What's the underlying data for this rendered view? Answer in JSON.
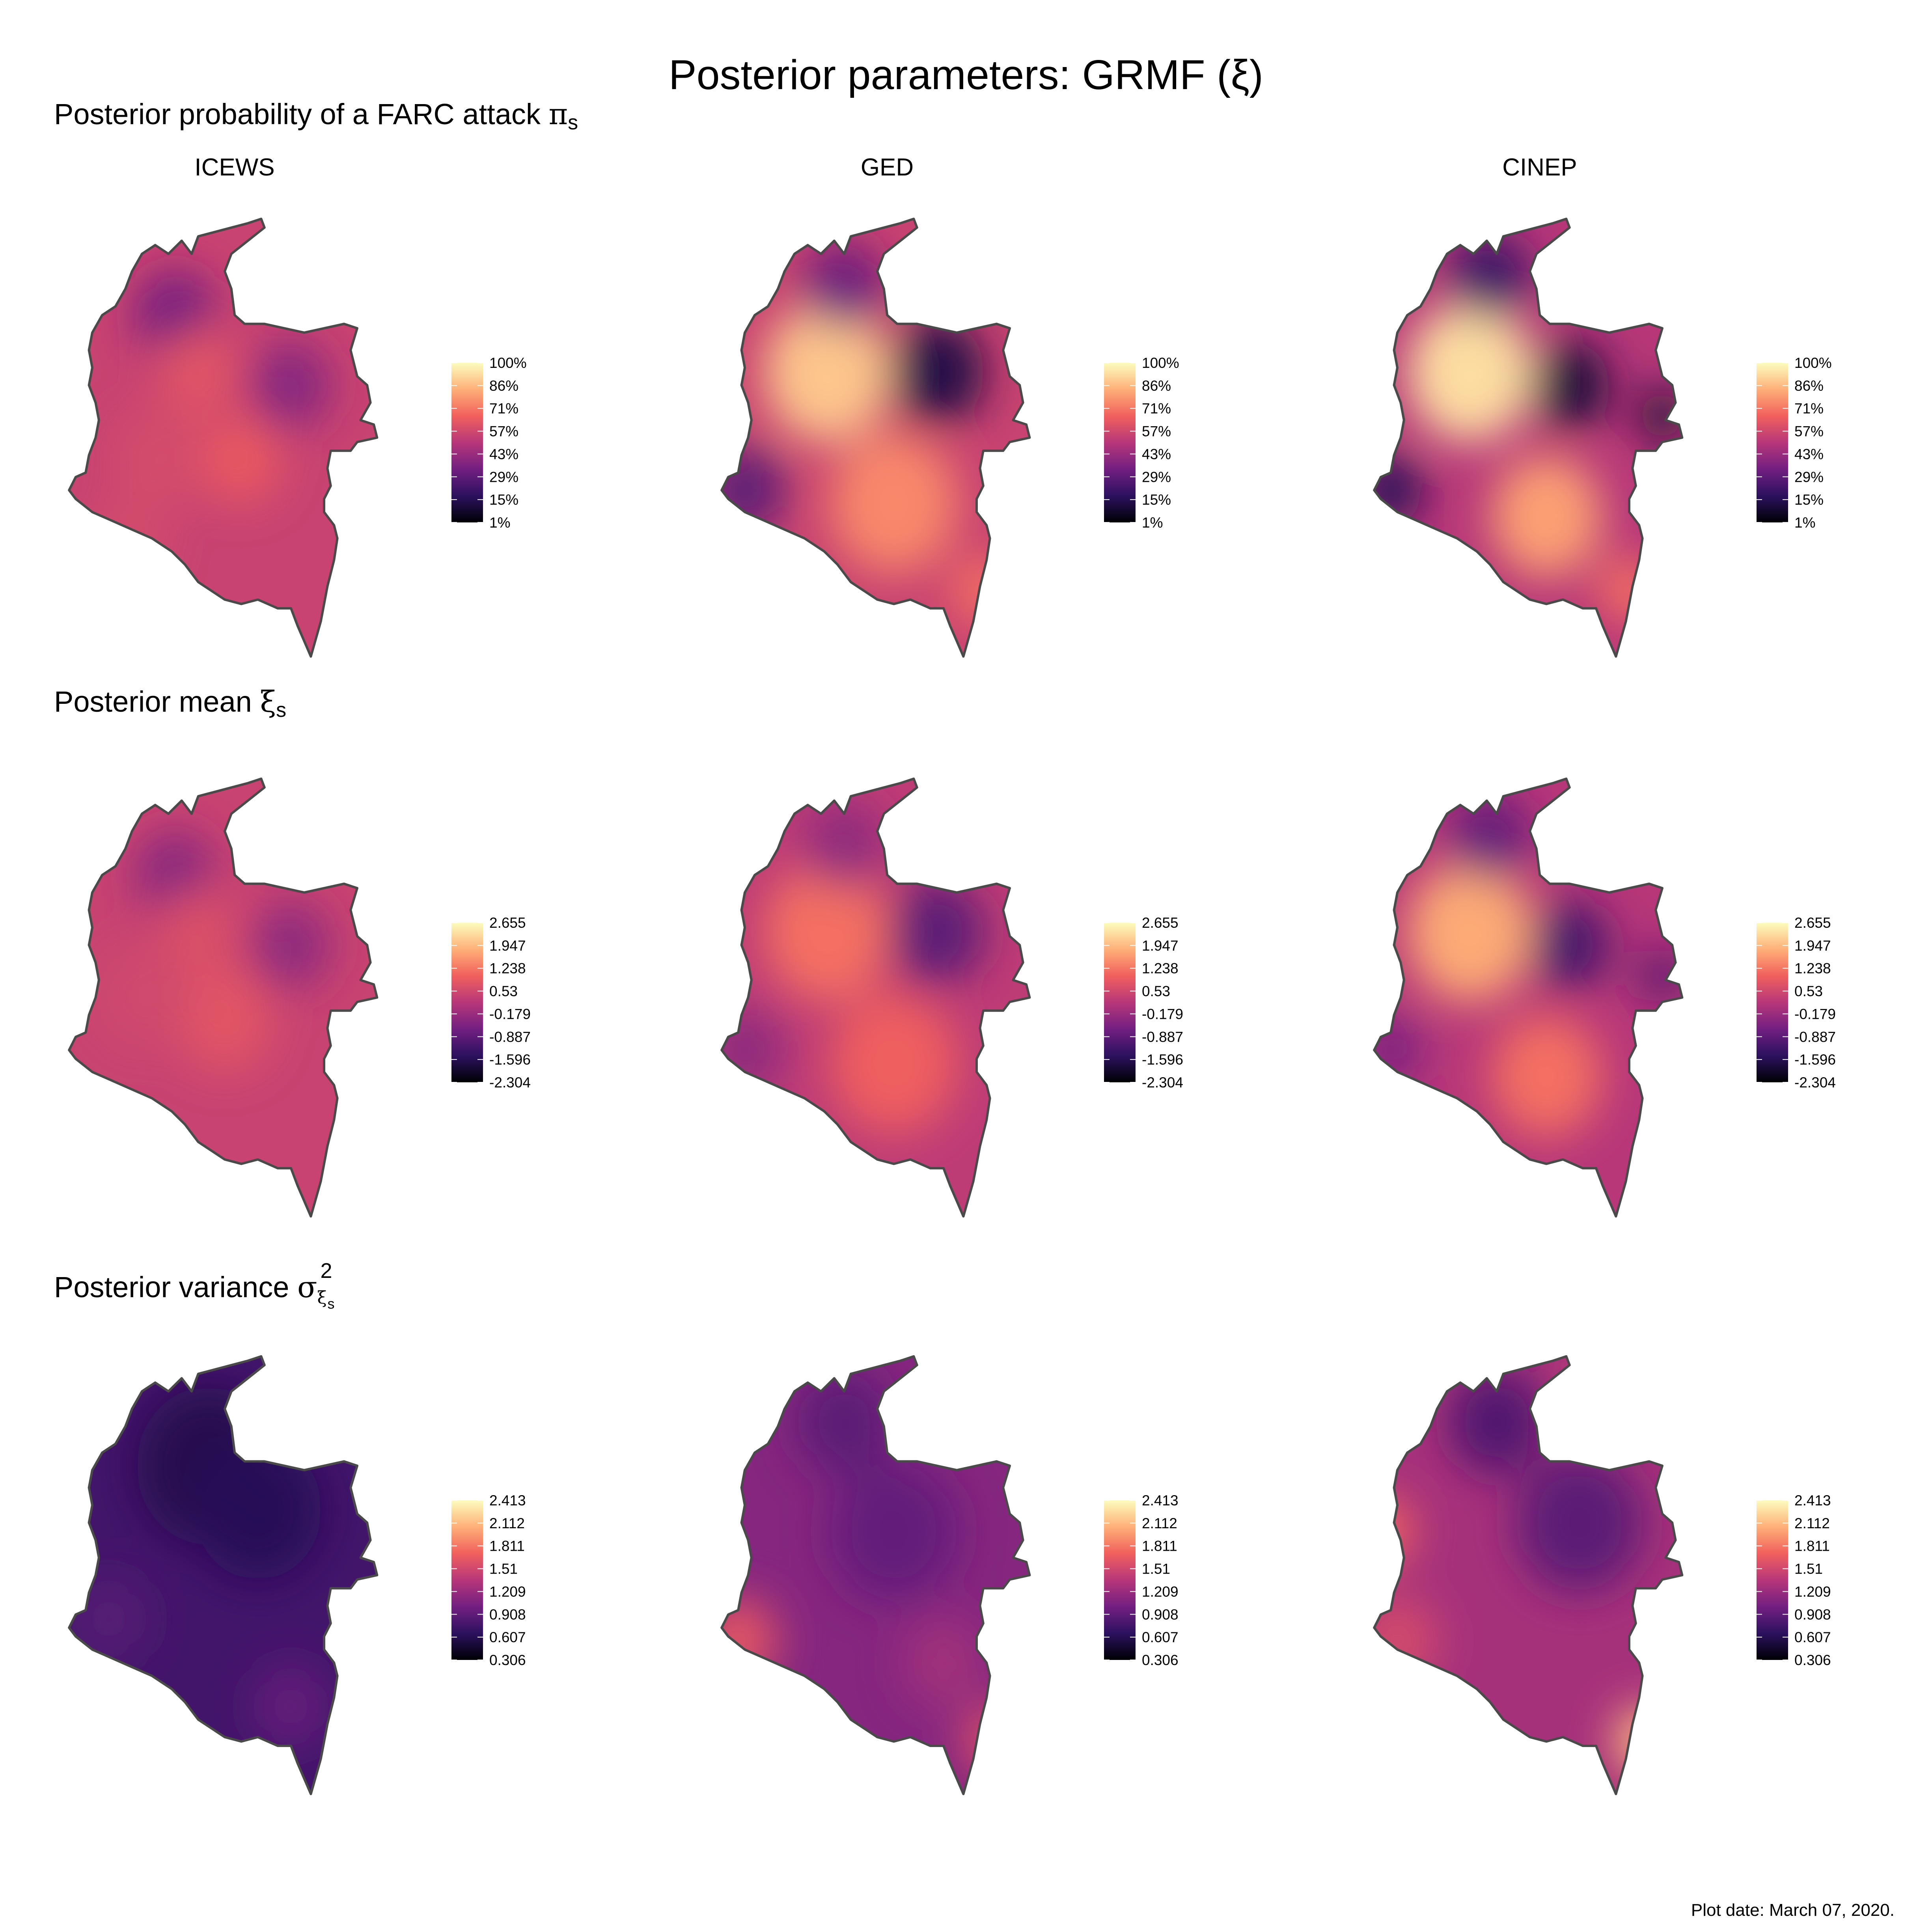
{
  "figure": {
    "title": "Posterior parameters: GRMF (ξ)",
    "footer": "Plot date: March 07, 2020."
  },
  "columns": [
    "ICEWS",
    "GED",
    "CINEP"
  ],
  "rows": [
    {
      "key": "pi",
      "title_text": "Posterior probability of a FARC attack ",
      "title_symbol": "π",
      "title_subscript": "s",
      "legend_ticks": [
        "100%",
        "86%",
        "71%",
        "57%",
        "43%",
        "29%",
        "15%",
        "1%"
      ]
    },
    {
      "key": "mean",
      "title_text": "Posterior mean ",
      "title_symbol": "ξ",
      "title_subscript": "s",
      "legend_ticks": [
        "2.655",
        "1.947",
        "1.238",
        "0.53",
        "-0.179",
        "-0.887",
        "-1.596",
        "-2.304"
      ]
    },
    {
      "key": "variance",
      "title_text": "Posterior variance ",
      "title_symbol": "σ",
      "title_superscript": "2",
      "title_sub_symbol": "ξ",
      "title_sub_subscript": "s",
      "legend_ticks": [
        "2.413",
        "2.112",
        "1.811",
        "1.51",
        "1.209",
        "0.908",
        "0.607",
        "0.306"
      ]
    }
  ],
  "colors": {
    "palette": [
      "#000004",
      "#2c115f",
      "#721f81",
      "#b73779",
      "#f1605d",
      "#feb078",
      "#fcfdbf"
    ],
    "border": "#4a4a4a",
    "background": "#ffffff"
  },
  "map_data": {
    "region": "Colombia",
    "panels": [
      {
        "row": "pi",
        "column": "ICEWS",
        "base": 0.55,
        "blobs": [
          [
            0.35,
            0.22,
            0.33,
            0.1
          ],
          [
            0.7,
            0.38,
            0.38,
            0.1
          ],
          [
            0.42,
            0.35,
            0.62,
            0.1
          ],
          [
            0.55,
            0.55,
            0.64,
            0.1
          ],
          [
            0.3,
            0.55,
            0.58,
            0.12
          ],
          [
            0.2,
            0.75,
            0.58,
            0.1
          ]
        ]
      },
      {
        "row": "pi",
        "column": "GED",
        "base": 0.55,
        "blobs": [
          [
            0.35,
            0.35,
            0.88,
            0.16
          ],
          [
            0.55,
            0.65,
            0.75,
            0.16
          ],
          [
            0.68,
            0.35,
            0.12,
            0.12
          ],
          [
            0.1,
            0.62,
            0.28,
            0.1
          ],
          [
            0.4,
            0.15,
            0.32,
            0.1
          ],
          [
            0.82,
            0.85,
            0.7,
            0.08
          ]
        ]
      },
      {
        "row": "pi",
        "column": "CINEP",
        "base": 0.5,
        "blobs": [
          [
            0.32,
            0.35,
            0.93,
            0.16
          ],
          [
            0.55,
            0.68,
            0.8,
            0.14
          ],
          [
            0.62,
            0.38,
            0.1,
            0.1
          ],
          [
            0.9,
            0.45,
            0.08,
            0.06
          ],
          [
            0.08,
            0.62,
            0.15,
            0.08
          ],
          [
            0.38,
            0.13,
            0.2,
            0.1
          ],
          [
            0.8,
            0.85,
            0.7,
            0.08
          ]
        ]
      },
      {
        "row": "mean",
        "column": "ICEWS",
        "base": 0.55,
        "blobs": [
          [
            0.35,
            0.22,
            0.38,
            0.1
          ],
          [
            0.7,
            0.38,
            0.4,
            0.1
          ],
          [
            0.42,
            0.35,
            0.6,
            0.1
          ],
          [
            0.5,
            0.55,
            0.62,
            0.12
          ],
          [
            0.25,
            0.5,
            0.57,
            0.12
          ]
        ]
      },
      {
        "row": "mean",
        "column": "GED",
        "base": 0.52,
        "blobs": [
          [
            0.35,
            0.35,
            0.7,
            0.16
          ],
          [
            0.55,
            0.65,
            0.66,
            0.16
          ],
          [
            0.68,
            0.35,
            0.28,
            0.12
          ],
          [
            0.1,
            0.62,
            0.4,
            0.1
          ],
          [
            0.4,
            0.15,
            0.4,
            0.1
          ]
        ]
      },
      {
        "row": "mean",
        "column": "CINEP",
        "base": 0.5,
        "blobs": [
          [
            0.32,
            0.35,
            0.82,
            0.16
          ],
          [
            0.55,
            0.68,
            0.7,
            0.14
          ],
          [
            0.62,
            0.38,
            0.22,
            0.1
          ],
          [
            0.9,
            0.45,
            0.25,
            0.06
          ],
          [
            0.08,
            0.62,
            0.35,
            0.08
          ],
          [
            0.38,
            0.13,
            0.3,
            0.1
          ]
        ]
      },
      {
        "row": "variance",
        "column": "ICEWS",
        "base": 0.22,
        "blobs": [
          [
            0.45,
            0.25,
            0.14,
            0.18
          ],
          [
            0.6,
            0.35,
            0.15,
            0.16
          ],
          [
            0.7,
            0.8,
            0.3,
            0.1
          ],
          [
            0.15,
            0.6,
            0.27,
            0.1
          ]
        ]
      },
      {
        "row": "variance",
        "column": "GED",
        "base": 0.38,
        "blobs": [
          [
            0.4,
            0.15,
            0.28,
            0.12
          ],
          [
            0.55,
            0.4,
            0.3,
            0.16
          ],
          [
            0.08,
            0.65,
            0.62,
            0.1
          ],
          [
            0.85,
            0.88,
            0.6,
            0.08
          ],
          [
            0.7,
            0.7,
            0.45,
            0.1
          ]
        ]
      },
      {
        "row": "variance",
        "column": "CINEP",
        "base": 0.46,
        "blobs": [
          [
            0.4,
            0.15,
            0.25,
            0.12
          ],
          [
            0.65,
            0.38,
            0.28,
            0.16
          ],
          [
            0.05,
            0.4,
            0.68,
            0.08
          ],
          [
            0.85,
            0.88,
            0.85,
            0.08
          ],
          [
            0.1,
            0.65,
            0.58,
            0.1
          ],
          [
            0.72,
            0.05,
            0.62,
            0.06
          ]
        ]
      }
    ]
  }
}
